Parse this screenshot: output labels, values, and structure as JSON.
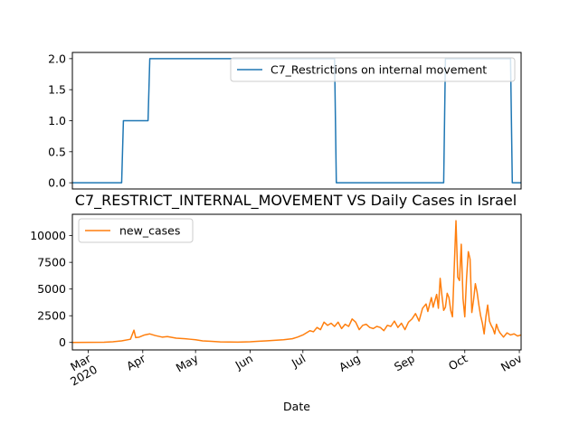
{
  "chart_data": [
    {
      "type": "line",
      "title": "",
      "xlabel": "",
      "ylabel": "",
      "ylim": [
        -0.1,
        2.1
      ],
      "yticks": [
        "0.0",
        "0.5",
        "1.0",
        "1.5",
        "2.0"
      ],
      "x_range": [
        "2020-02-21",
        "2020-11-02"
      ],
      "legend_position": "top-right",
      "grid": false,
      "series": [
        {
          "name": "C7_Restrictions on internal movement",
          "color": "#1f77b4",
          "x": [
            "2020-02-21",
            "2020-03-20",
            "2020-03-21",
            "2020-04-04",
            "2020-04-05",
            "2020-07-19",
            "2020-07-20",
            "2020-09-19",
            "2020-09-20",
            "2020-10-27",
            "2020-10-28",
            "2020-11-02"
          ],
          "values": [
            0,
            0,
            1,
            1,
            2,
            2,
            0,
            0,
            2,
            2,
            0,
            0
          ]
        }
      ]
    },
    {
      "type": "line",
      "title": "C7_RESTRICT_INTERNAL_MOVEMENT VS Daily Cases in Israel",
      "xlabel": "Date",
      "ylabel": "",
      "ylim": [
        -700,
        12000
      ],
      "yticks": [
        "0",
        "2500",
        "5000",
        "7500",
        "10000"
      ],
      "x_range": [
        "2020-02-21",
        "2020-11-02"
      ],
      "xtick_dates": [
        "2020-03-01",
        "2020-04-01",
        "2020-05-01",
        "2020-06-01",
        "2020-07-01",
        "2020-08-01",
        "2020-09-01",
        "2020-10-01",
        "2020-11-01"
      ],
      "xtick_labels": [
        "Mar\n2020",
        "Apr",
        "May",
        "Jun",
        "Jul",
        "Aug",
        "Sep",
        "Oct",
        "Nov"
      ],
      "legend_position": "top-left",
      "grid": false,
      "series": [
        {
          "name": "new_cases",
          "color": "#ff7f0e",
          "x": [
            "2020-02-21",
            "2020-03-01",
            "2020-03-10",
            "2020-03-15",
            "2020-03-20",
            "2020-03-25",
            "2020-03-27",
            "2020-03-28",
            "2020-03-30",
            "2020-04-02",
            "2020-04-05",
            "2020-04-08",
            "2020-04-12",
            "2020-04-15",
            "2020-04-20",
            "2020-04-25",
            "2020-04-28",
            "2020-05-01",
            "2020-05-05",
            "2020-05-10",
            "2020-05-15",
            "2020-05-20",
            "2020-05-25",
            "2020-06-01",
            "2020-06-05",
            "2020-06-10",
            "2020-06-15",
            "2020-06-20",
            "2020-06-25",
            "2020-06-28",
            "2020-07-01",
            "2020-07-03",
            "2020-07-05",
            "2020-07-07",
            "2020-07-09",
            "2020-07-11",
            "2020-07-13",
            "2020-07-15",
            "2020-07-17",
            "2020-07-19",
            "2020-07-21",
            "2020-07-23",
            "2020-07-25",
            "2020-07-27",
            "2020-07-29",
            "2020-07-31",
            "2020-08-02",
            "2020-08-04",
            "2020-08-06",
            "2020-08-08",
            "2020-08-10",
            "2020-08-12",
            "2020-08-14",
            "2020-08-16",
            "2020-08-18",
            "2020-08-20",
            "2020-08-22",
            "2020-08-24",
            "2020-08-26",
            "2020-08-28",
            "2020-08-30",
            "2020-09-01",
            "2020-09-03",
            "2020-09-05",
            "2020-09-07",
            "2020-09-09",
            "2020-09-10",
            "2020-09-12",
            "2020-09-13",
            "2020-09-15",
            "2020-09-16",
            "2020-09-17",
            "2020-09-18",
            "2020-09-19",
            "2020-09-20",
            "2020-09-21",
            "2020-09-22",
            "2020-09-23",
            "2020-09-24",
            "2020-09-25",
            "2020-09-26",
            "2020-09-27",
            "2020-09-28",
            "2020-09-29",
            "2020-09-30",
            "2020-10-01",
            "2020-10-02",
            "2020-10-03",
            "2020-10-04",
            "2020-10-05",
            "2020-10-06",
            "2020-10-07",
            "2020-10-08",
            "2020-10-09",
            "2020-10-10",
            "2020-10-11",
            "2020-10-12",
            "2020-10-13",
            "2020-10-14",
            "2020-10-15",
            "2020-10-16",
            "2020-10-17",
            "2020-10-18",
            "2020-10-19",
            "2020-10-20",
            "2020-10-21",
            "2020-10-22",
            "2020-10-23",
            "2020-10-25",
            "2020-10-27",
            "2020-10-29",
            "2020-10-31",
            "2020-11-02"
          ],
          "values": [
            0,
            5,
            20,
            60,
            150,
            300,
            1150,
            450,
            500,
            700,
            800,
            650,
            500,
            550,
            400,
            350,
            300,
            250,
            150,
            100,
            50,
            40,
            30,
            60,
            100,
            150,
            200,
            250,
            350,
            500,
            700,
            900,
            1100,
            1000,
            1400,
            1200,
            1900,
            1600,
            1800,
            1500,
            1900,
            1300,
            1700,
            1500,
            2200,
            1900,
            1200,
            1600,
            1700,
            1400,
            1300,
            1500,
            1400,
            1100,
            1600,
            1500,
            2000,
            1400,
            1800,
            1200,
            1900,
            2200,
            2700,
            2000,
            3200,
            3600,
            2900,
            4200,
            3300,
            4500,
            3200,
            6000,
            4400,
            3000,
            3300,
            4600,
            4200,
            3000,
            2400,
            7000,
            11400,
            6100,
            5800,
            9200,
            4100,
            2400,
            6000,
            8500,
            7800,
            2800,
            4000,
            5500,
            4700,
            3500,
            2500,
            1800,
            800,
            2400,
            3500,
            2000,
            1600,
            1300,
            800,
            1700,
            1200,
            900,
            700,
            500,
            900,
            700,
            800,
            600,
            700
          ]
        }
      ]
    }
  ]
}
